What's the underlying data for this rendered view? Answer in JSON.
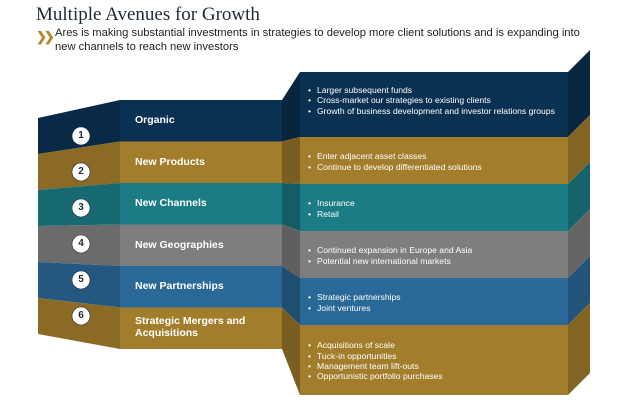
{
  "title": "Multiple Avenues for Growth",
  "subtitle": "Ares is making substantial investments in strategies to develop more client solutions and is expanding into new channels to reach new investors",
  "colors": {
    "navy": "#0b3152",
    "gold": "#a27d2c",
    "teal": "#1b7c86",
    "gray": "#7e7e7e",
    "blue": "#2a6897",
    "sand": "#e6c9a3"
  },
  "rows": [
    {
      "num": "1",
      "label": "Organic",
      "color": "navy",
      "bullets": [
        "Larger subsequent funds",
        "Cross-market our strategies to existing clients",
        "Growth of business development and investor relations groups"
      ]
    },
    {
      "num": "2",
      "label": "New Products",
      "color": "gold",
      "bullets": [
        "Enter adjacent asset classes",
        "Continue to develop differentiated solutions"
      ]
    },
    {
      "num": "3",
      "label": "New Channels",
      "color": "teal",
      "bullets": [
        "Insurance",
        "Retail"
      ]
    },
    {
      "num": "4",
      "label": "New Geographies",
      "color": "gray",
      "bullets": [
        "Continued expansion in Europe and Asia",
        "Potential new international markets"
      ]
    },
    {
      "num": "5",
      "label": "New Partnerships",
      "color": "blue",
      "bullets": [
        "Strategic partnerships",
        "Joint ventures"
      ]
    },
    {
      "num": "6",
      "label": "Strategic Mergers and Acquisitions",
      "color": "gold",
      "bullets": [
        "Acquisitions of scale",
        "Tuck-in opportunities",
        "Management team lift-outs",
        "Opportunistic portfolio purchases"
      ]
    }
  ]
}
